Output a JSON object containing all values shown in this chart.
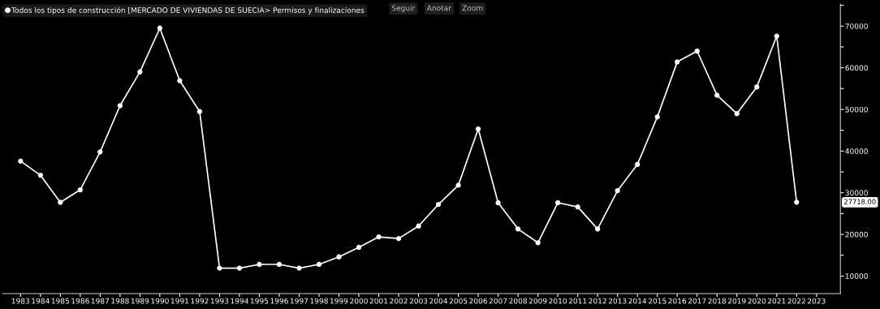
{
  "chart_data": {
    "type": "line",
    "categories": [
      "1983",
      "1984",
      "1985",
      "1986",
      "1987",
      "1988",
      "1989",
      "1990",
      "1991",
      "1992",
      "1993",
      "1994",
      "1995",
      "1996",
      "1997",
      "1998",
      "1999",
      "2000",
      "2001",
      "2002",
      "2003",
      "2004",
      "2005",
      "2006",
      "2007",
      "2008",
      "2009",
      "2010",
      "2011",
      "2012",
      "2013",
      "2014",
      "2015",
      "2016",
      "2017",
      "2018",
      "2019",
      "2020",
      "2021",
      "2022",
      "2023"
    ],
    "series": [
      {
        "name": "Todos los tipos de construcción [MERCADO DE VIVIENDAS DE SUECIA> Permisos y finalizaciones",
        "color": "#ffffff",
        "values": [
          37600,
          34200,
          27700,
          30700,
          39800,
          50900,
          59000,
          69500,
          56900,
          49500,
          11900,
          11900,
          12800,
          12800,
          11900,
          12800,
          14600,
          16900,
          19400,
          19000,
          22000,
          27200,
          31800,
          45300,
          27600,
          21300,
          18000,
          27600,
          26600,
          21300,
          30500,
          36800,
          48200,
          61400,
          64000,
          53400,
          49000,
          55400,
          67600,
          27718,
          null
        ]
      }
    ],
    "ylim": [
      5800,
      75300
    ],
    "yticks": [
      {
        "value": 10000,
        "label": "10000"
      },
      {
        "value": 15000,
        "label": null
      },
      {
        "value": 20000,
        "label": "20000"
      },
      {
        "value": 25000,
        "label": null
      },
      {
        "value": 30000,
        "label": "30000"
      },
      {
        "value": 35000,
        "label": null
      },
      {
        "value": 40000,
        "label": "40000"
      },
      {
        "value": 45000,
        "label": null
      },
      {
        "value": 50000,
        "label": "50000"
      },
      {
        "value": 55000,
        "label": null
      },
      {
        "value": 60000,
        "label": "60000"
      },
      {
        "value": 65000,
        "label": null
      },
      {
        "value": 70000,
        "label": "70000"
      },
      {
        "value": 75000,
        "label": null
      }
    ],
    "annotations": [
      "27718.00",
      "Seguir",
      "Anotar",
      "Zoom"
    ],
    "legend": "top left",
    "marker": "circle",
    "line_style": "solid",
    "grid": false
  }
}
